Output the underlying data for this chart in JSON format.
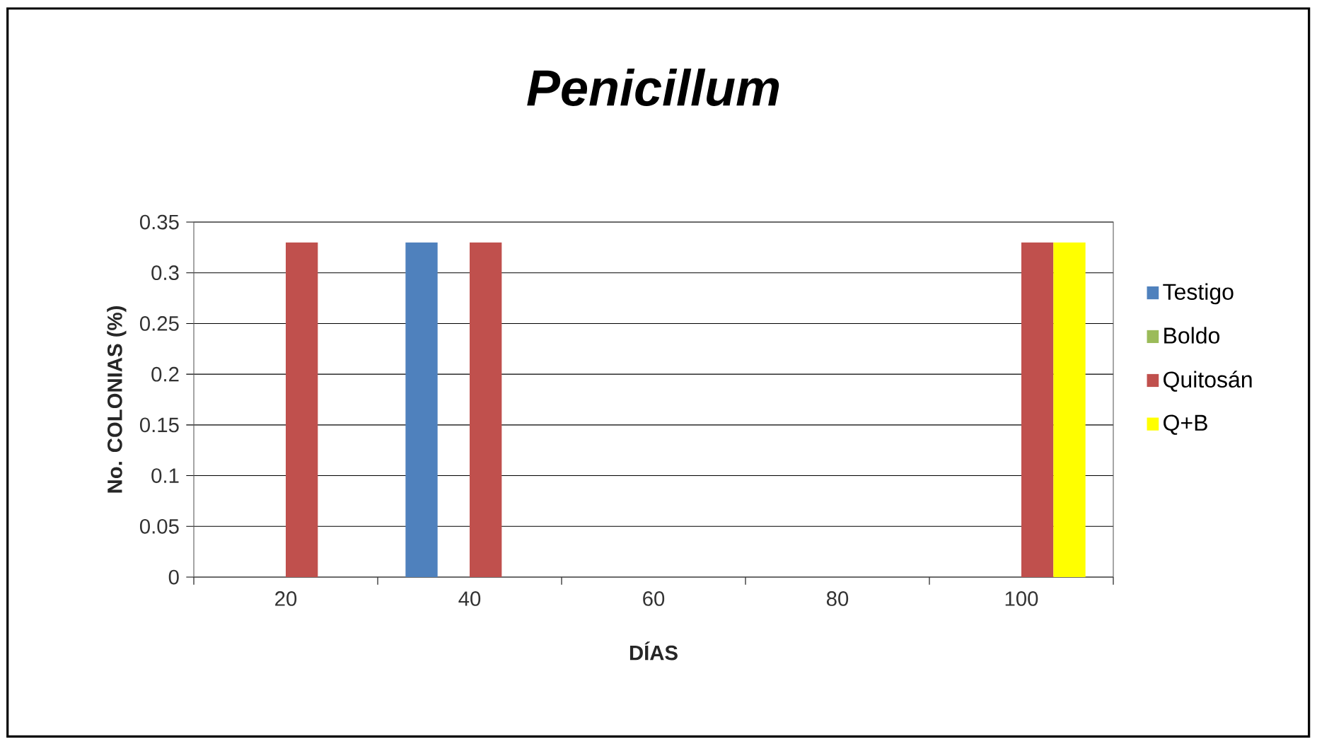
{
  "chart_data": {
    "type": "bar",
    "title": "Penicillum",
    "xlabel": "DÍAS",
    "ylabel": "No. COLONIAS  (%)",
    "categories": [
      "20",
      "40",
      "60",
      "80",
      "100"
    ],
    "series": [
      {
        "name": "Testigo",
        "color": "#4f81bd",
        "values": [
          0,
          0.33,
          0,
          0,
          0
        ]
      },
      {
        "name": "Boldo",
        "color": "#9bbb59",
        "values": [
          0,
          0,
          0,
          0,
          0
        ]
      },
      {
        "name": "Quitosán",
        "color": "#c0504d",
        "values": [
          0.33,
          0.33,
          0,
          0,
          0.33
        ]
      },
      {
        "name": "Q+B",
        "color": "#ffff00",
        "values": [
          0,
          0,
          0,
          0,
          0.33
        ]
      }
    ],
    "ylim": [
      0,
      0.35
    ],
    "yticks": [
      0,
      0.05,
      0.1,
      0.15,
      0.2,
      0.25,
      0.3,
      0.35
    ],
    "grid": "y",
    "legend": "right"
  }
}
